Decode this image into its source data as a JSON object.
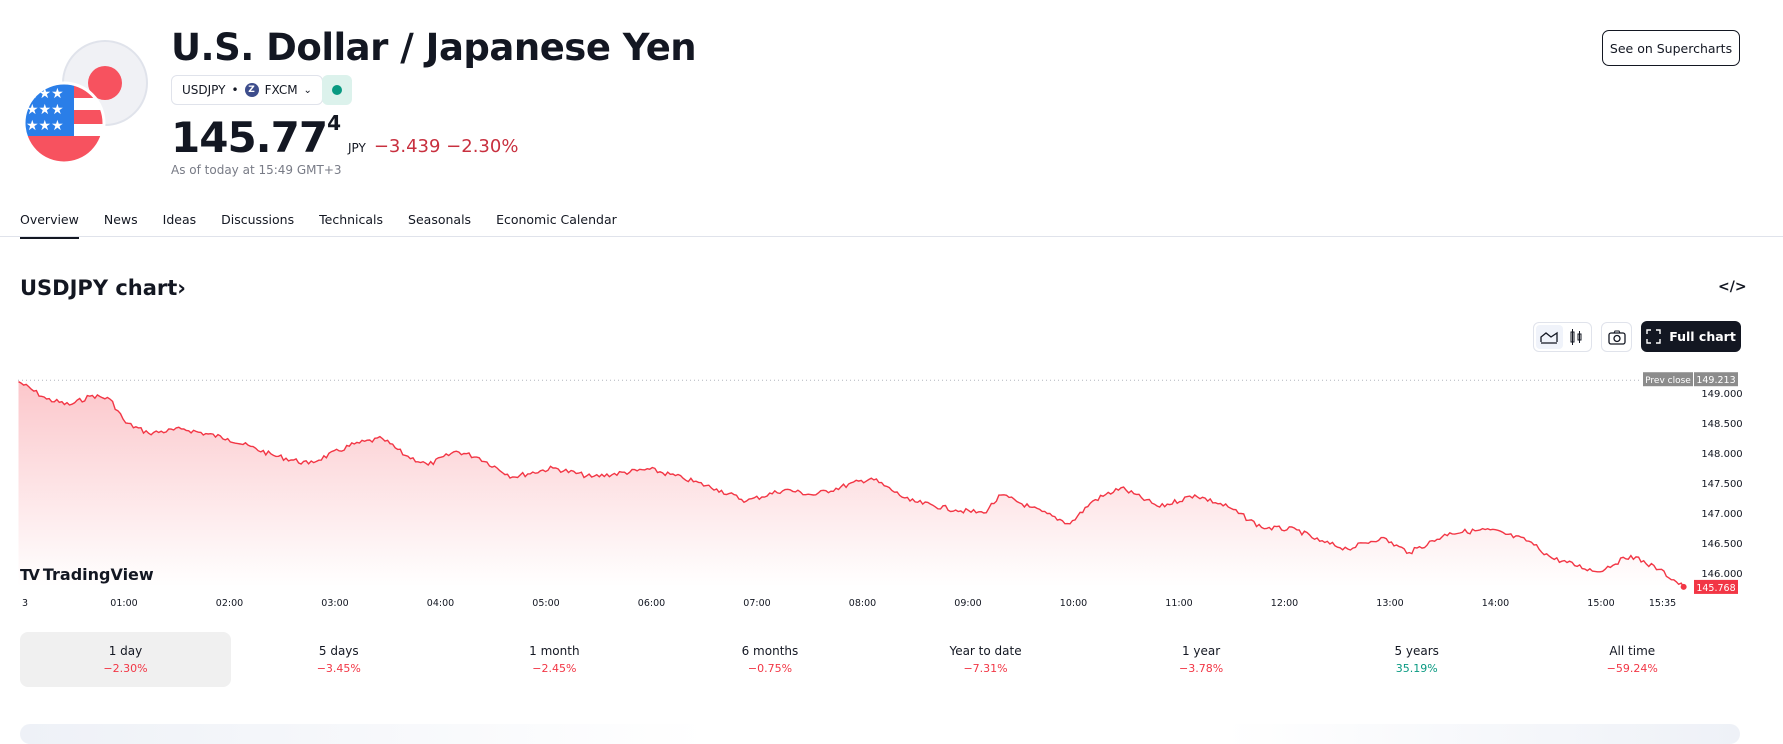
{
  "header": {
    "title": "U.S. Dollar / Japanese Yen",
    "symbol": "USDJPY",
    "exchange": "FXCM",
    "exchange_icon": "Z",
    "price_main": "145.77",
    "price_sup": "4",
    "currency": "JPY",
    "change": "−3.439 −2.30%",
    "as_of": "As of today at 15:49 GMT+3",
    "market_status_color": "#089981",
    "superchart_label": "See on Supercharts"
  },
  "tabs": [
    {
      "label": "Overview",
      "active": true
    },
    {
      "label": "News"
    },
    {
      "label": "Ideas"
    },
    {
      "label": "Discussions"
    },
    {
      "label": "Technicals"
    },
    {
      "label": "Seasonals"
    },
    {
      "label": "Economic Calendar"
    }
  ],
  "chart_section": {
    "title": "USDJPY chart",
    "chevron": "›",
    "embed": "</>",
    "full_chart": "Full chart",
    "watermark": "TradingView"
  },
  "chart_data": {
    "type": "area",
    "color": "#f23645",
    "prev_close_label": "Prev close",
    "prev_close": 149.213,
    "last_value": 145.768,
    "ylim": [
      145.7,
      149.25
    ],
    "y_ticks": [
      "149.000",
      "148.500",
      "148.000",
      "147.500",
      "147.000",
      "146.500",
      "146.000"
    ],
    "x_ticks": [
      "3",
      "01:00",
      "02:00",
      "03:00",
      "04:00",
      "05:00",
      "06:00",
      "07:00",
      "08:00",
      "09:00",
      "10:00",
      "11:00",
      "12:00",
      "13:00",
      "14:00",
      "15:00",
      "15:35"
    ],
    "points": [
      [
        "00:00",
        149.19
      ],
      [
        "00:16",
        148.9
      ],
      [
        "00:29",
        148.8
      ],
      [
        "00:42",
        148.96
      ],
      [
        "00:52",
        148.9
      ],
      [
        "01:01",
        148.5
      ],
      [
        "01:14",
        148.33
      ],
      [
        "01:34",
        148.4
      ],
      [
        "01:59",
        148.24
      ],
      [
        "02:25",
        147.96
      ],
      [
        "02:45",
        147.82
      ],
      [
        "03:11",
        148.15
      ],
      [
        "03:27",
        148.24
      ],
      [
        "03:40",
        147.96
      ],
      [
        "03:53",
        147.8
      ],
      [
        "04:09",
        148.03
      ],
      [
        "04:22",
        147.92
      ],
      [
        "04:41",
        147.6
      ],
      [
        "05:04",
        147.75
      ],
      [
        "05:26",
        147.6
      ],
      [
        "05:59",
        147.73
      ],
      [
        "06:18",
        147.58
      ],
      [
        "06:37",
        147.4
      ],
      [
        "06:54",
        147.2
      ],
      [
        "07:16",
        147.39
      ],
      [
        "07:32",
        147.3
      ],
      [
        "08:05",
        147.58
      ],
      [
        "08:27",
        147.2
      ],
      [
        "08:53",
        147.05
      ],
      [
        "09:09",
        147.0
      ],
      [
        "09:19",
        147.3
      ],
      [
        "09:35",
        147.1
      ],
      [
        "09:58",
        146.82
      ],
      [
        "10:11",
        147.2
      ],
      [
        "10:27",
        147.42
      ],
      [
        "10:49",
        147.1
      ],
      [
        "11:09",
        147.3
      ],
      [
        "11:28",
        147.1
      ],
      [
        "11:47",
        146.76
      ],
      [
        "12:07",
        146.72
      ],
      [
        "12:20",
        146.53
      ],
      [
        "12:36",
        146.4
      ],
      [
        "12:55",
        146.59
      ],
      [
        "13:11",
        146.34
      ],
      [
        "13:34",
        146.67
      ],
      [
        "13:57",
        146.72
      ],
      [
        "14:19",
        146.53
      ],
      [
        "14:32",
        146.25
      ],
      [
        "14:58",
        146.02
      ],
      [
        "15:17",
        146.29
      ],
      [
        "15:33",
        146.06
      ],
      [
        "15:47",
        145.768
      ]
    ]
  },
  "periods": [
    {
      "label": "1 day",
      "value": "−2.30%",
      "color": "#f23645",
      "active": true
    },
    {
      "label": "5 days",
      "value": "−3.45%",
      "color": "#f23645"
    },
    {
      "label": "1 month",
      "value": "−2.45%",
      "color": "#f23645"
    },
    {
      "label": "6 months",
      "value": "−0.75%",
      "color": "#f23645"
    },
    {
      "label": "Year to date",
      "value": "−7.31%",
      "color": "#f23645"
    },
    {
      "label": "1 year",
      "value": "−3.78%",
      "color": "#f23645"
    },
    {
      "label": "5 years",
      "value": "35.19%",
      "color": "#089981"
    },
    {
      "label": "All time",
      "value": "−59.24%",
      "color": "#f23645"
    }
  ]
}
